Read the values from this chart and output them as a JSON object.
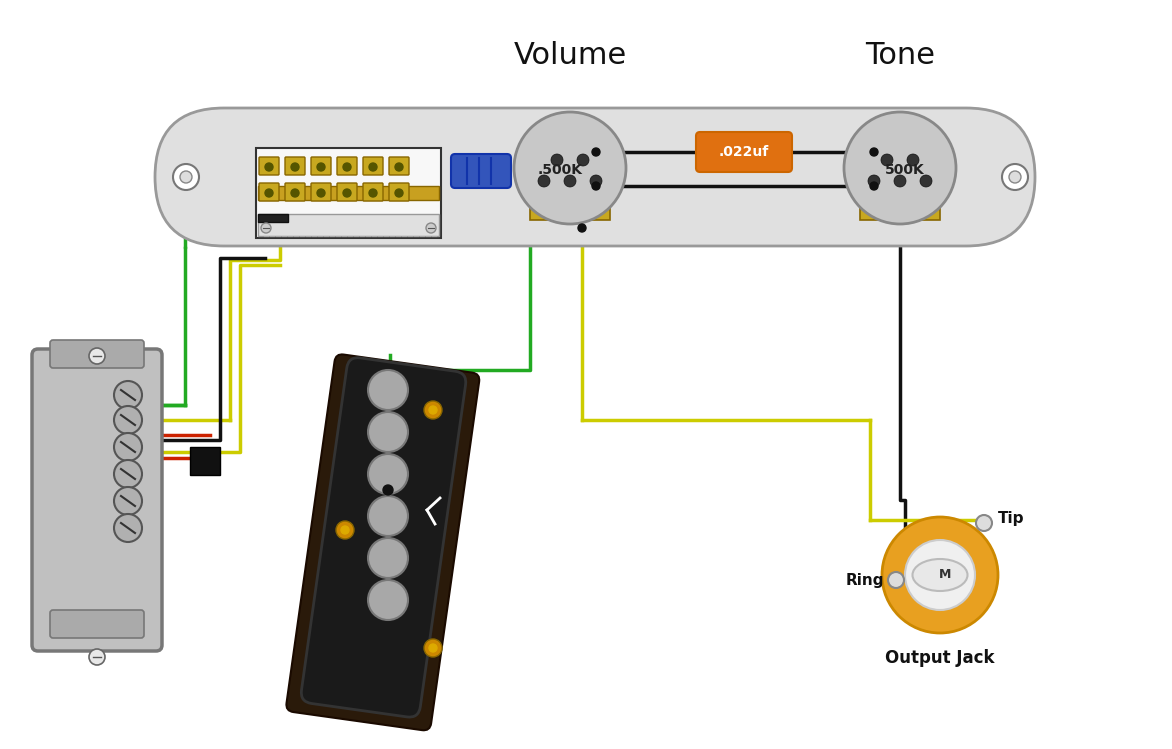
{
  "bg_color": "#ffffff",
  "title_volume": "Volume",
  "title_tone": "Tone",
  "label_500k_vol": ".500K",
  "label_500k_tone": "500K",
  "label_capacitor": ".022uf",
  "label_output": "Output Jack",
  "label_tip": "Tip",
  "label_ring": "Ring",
  "label_m": "M",
  "plate_color": "#e0e0e0",
  "plate_stroke": "#999999",
  "pot_body_color": "#c8c8c8",
  "pot_lug_color": "#c8a820",
  "switch_body_color": "#f0f0f0",
  "switch_lug_color": "#c8a820",
  "cap_color": "#e07010",
  "cap_text_color": "#ffffff",
  "wire_green": "#22aa22",
  "wire_black": "#111111",
  "wire_yellow": "#cccc00",
  "wire_red": "#cc2200",
  "wire_blue": "#3355cc",
  "jack_outer_color": "#e8a020",
  "jack_inner_color": "#f0f0f0",
  "jack_body_color": "#d8d8d8",
  "neck_pickup_color": "#b8b8b8",
  "bridge_pickup_color": "#1a1a1a",
  "screw_color": "#888888"
}
